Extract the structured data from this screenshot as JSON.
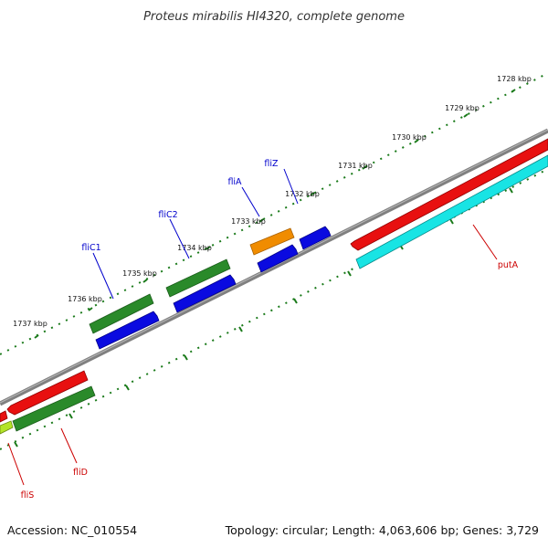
{
  "title": "Proteus mirabilis HI4320, complete genome",
  "footer": {
    "accession": "Accession: NC_010554",
    "summary": "Topology: circular; Length: 4,063,606 bp; Genes: 3,729"
  },
  "colors": {
    "backbone": "#808080",
    "tick": "#1a7a1a",
    "forward_label": "#0000cc",
    "reverse_label": "#cc0000",
    "red": "#e81010",
    "blue": "#0a0ae0",
    "green": "#2a8a2a",
    "orange": "#f08c00",
    "cyan": "#18e4e4",
    "lime": "#b4e428"
  },
  "ticks": {
    "labels": [
      "1728 kbp",
      "1729 kbp",
      "1730 kbp",
      "1731 kbp",
      "1732 kbp",
      "1733 kbp",
      "1734 kbp",
      "1735 kbp",
      "1736 kbp",
      "1737 kbp"
    ]
  },
  "genes": {
    "forward_labels": [
      "fliZ",
      "fliA",
      "fliC2",
      "fliC1"
    ],
    "reverse_labels": [
      "putA",
      "fliD",
      "fliS"
    ]
  }
}
